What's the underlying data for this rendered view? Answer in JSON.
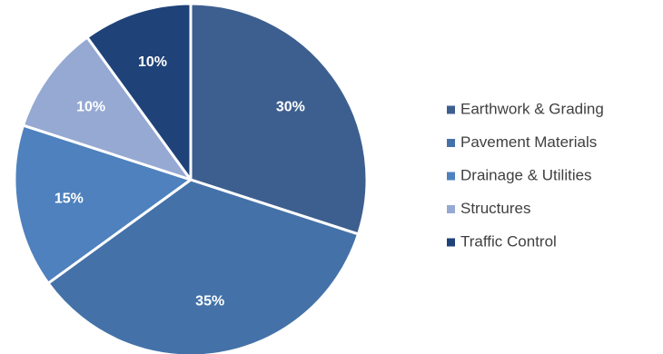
{
  "chart_data": {
    "type": "pie",
    "categories": [
      "Earthwork & Grading",
      "Pavement Materials",
      "Drainage & Utilities",
      "Structures",
      "Traffic Control"
    ],
    "values": [
      30,
      35,
      15,
      10,
      10
    ],
    "data_labels": [
      "30%",
      "35%",
      "15%",
      "10%",
      "10%"
    ],
    "colors": [
      "#3d5f8f",
      "#4472a8",
      "#4e81bd",
      "#95a9d2",
      "#1f4279"
    ],
    "start_angle_deg": 0,
    "direction": "clockwise",
    "legend": "right"
  }
}
